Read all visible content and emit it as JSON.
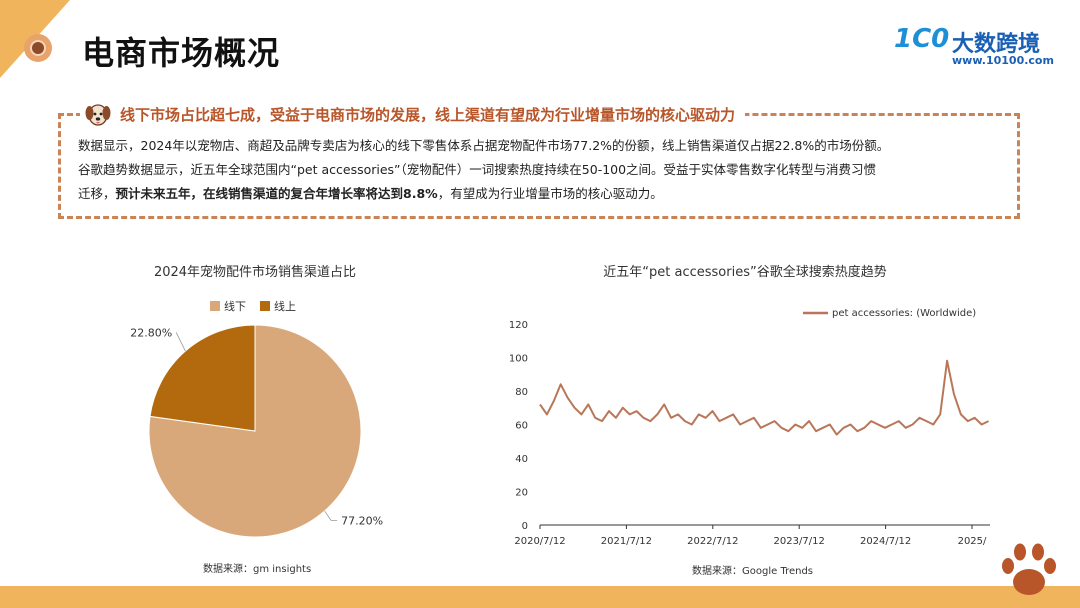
{
  "header": {
    "title": "电商市场概况",
    "logo_mark": "1C0",
    "logo_name": "大数跨境",
    "logo_url": "www.10100.com"
  },
  "info": {
    "heading": "线下市场占比超七成，受益于电商市场的发展，线上渠道有望成为行业增量市场的核心驱动力",
    "line1": "数据显示，2024年以宠物店、商超及品牌专卖店为核心的线下零售体系占据宠物配件市场77.2%的份额，线上销售渠道仅占据22.8%的市场份额。",
    "line2": "谷歌趋势数据显示，近五年全球范围内“pet accessories”（宠物配件）一词搜索热度持续在50-100之间。受益于实体零售数字化转型与消费习惯",
    "line3_prefix": "迁移，",
    "line3_bold": "预计未来五年，在线销售渠道的复合年增长率将达到8.8%",
    "line3_suffix": "，有望成为行业增量市场的核心驱动力。"
  },
  "colors": {
    "offline": "#d9a87a",
    "online": "#b36a0e",
    "line": "#b87758",
    "accent": "#f0b45c",
    "dashed_border": "#c98355"
  },
  "icons": {
    "heading": "dog-icon",
    "decor": "paw-icon",
    "title": "circle-dot-icon"
  },
  "chart_data": [
    {
      "type": "pie",
      "title": "2024年宠物配件市场销售渠道占比",
      "legend": [
        "线下",
        "线上"
      ],
      "legend_placement": "top",
      "slices": [
        {
          "name": "线下",
          "value": 77.2,
          "label": "77.20%"
        },
        {
          "name": "线上",
          "value": 22.8,
          "label": "22.80%"
        }
      ],
      "source": "数据来源：gm insights"
    },
    {
      "type": "line",
      "title": "近五年“pet accessories”谷歌全球搜索热度趋势",
      "legend_placement": "top-right",
      "ylim": [
        0,
        120
      ],
      "yticks": [
        "0",
        "20",
        "40",
        "60",
        "80",
        "100",
        "120"
      ],
      "xticks": [
        "2020/7/12",
        "2021/7/12",
        "2022/7/12",
        "2023/7/12",
        "2024/7/12",
        "2025/"
      ],
      "xlim": [
        "2020-07-12",
        "2025-07-12"
      ],
      "grid": false,
      "series": [
        {
          "name": "pet accessories: (Worldwide)",
          "x": [
            "2020-07-12",
            "2020-08-09",
            "2020-09-06",
            "2020-10-04",
            "2020-11-01",
            "2020-11-29",
            "2020-12-27",
            "2021-01-24",
            "2021-02-21",
            "2021-03-21",
            "2021-04-18",
            "2021-05-16",
            "2021-06-13",
            "2021-07-11",
            "2021-08-08",
            "2021-09-05",
            "2021-10-03",
            "2021-10-31",
            "2021-11-28",
            "2021-12-26",
            "2022-01-23",
            "2022-02-20",
            "2022-03-20",
            "2022-04-17",
            "2022-05-15",
            "2022-06-12",
            "2022-07-10",
            "2022-08-07",
            "2022-09-04",
            "2022-10-02",
            "2022-10-30",
            "2022-11-27",
            "2022-12-25",
            "2023-01-22",
            "2023-02-19",
            "2023-03-19",
            "2023-04-16",
            "2023-05-14",
            "2023-06-11",
            "2023-07-09",
            "2023-08-06",
            "2023-09-03",
            "2023-10-01",
            "2023-10-29",
            "2023-11-26",
            "2023-12-24",
            "2024-01-21",
            "2024-02-18",
            "2024-03-17",
            "2024-04-14",
            "2024-05-12",
            "2024-06-09",
            "2024-07-07",
            "2024-08-04",
            "2024-09-01",
            "2024-09-29",
            "2024-10-27",
            "2024-11-24",
            "2024-12-22",
            "2025-01-19",
            "2025-02-16",
            "2025-03-16",
            "2025-04-13",
            "2025-05-11",
            "2025-06-08",
            "2025-07-06"
          ],
          "values": [
            72,
            66,
            74,
            84,
            76,
            70,
            66,
            72,
            64,
            62,
            68,
            64,
            70,
            66,
            68,
            64,
            62,
            66,
            72,
            64,
            66,
            62,
            60,
            66,
            64,
            68,
            62,
            64,
            66,
            60,
            62,
            64,
            58,
            60,
            62,
            58,
            56,
            60,
            58,
            62,
            56,
            58,
            60,
            54,
            58,
            60,
            56,
            58,
            62,
            60,
            58,
            60,
            62,
            58,
            60,
            64,
            62,
            60,
            66,
            98,
            78,
            66,
            62,
            64,
            60,
            62
          ],
          "values_extra": []
        }
      ],
      "source": "数据来源：Google Trends"
    }
  ]
}
